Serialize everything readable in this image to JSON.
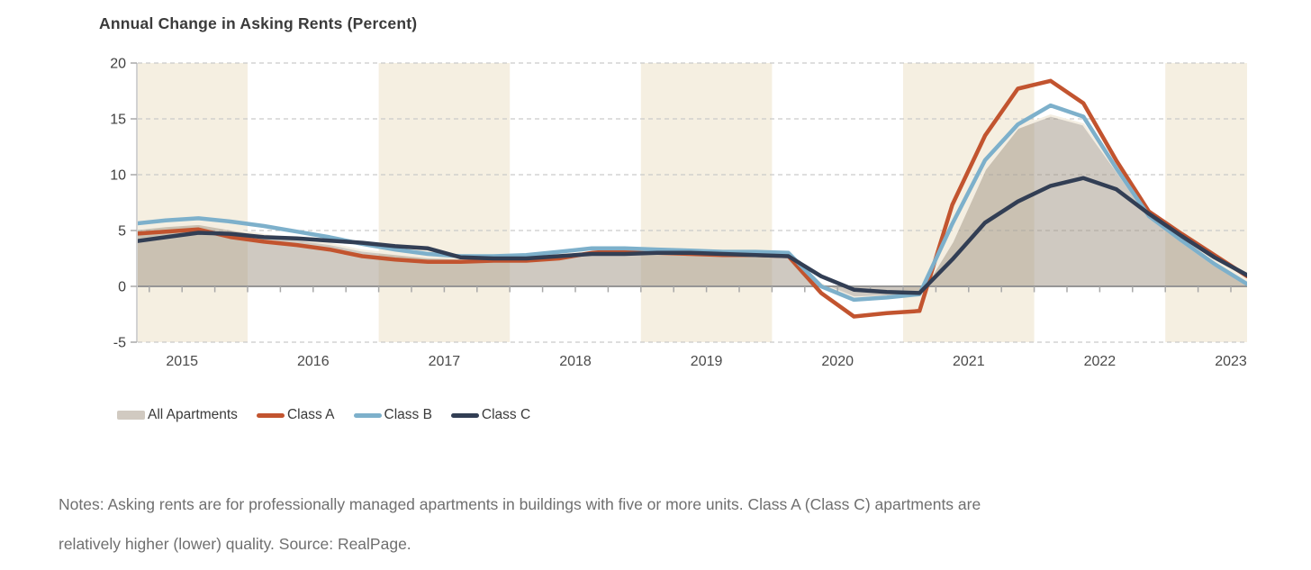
{
  "chart_data": {
    "type": "line",
    "title": "Annual Change in Asking Rents (Percent)",
    "x_quarters": [
      "2015Q1",
      "2015Q2",
      "2015Q3",
      "2015Q4",
      "2016Q1",
      "2016Q2",
      "2016Q3",
      "2016Q4",
      "2017Q1",
      "2017Q2",
      "2017Q3",
      "2017Q4",
      "2018Q1",
      "2018Q2",
      "2018Q3",
      "2018Q4",
      "2019Q1",
      "2019Q2",
      "2019Q3",
      "2019Q4",
      "2020Q1",
      "2020Q2",
      "2020Q3",
      "2020Q4",
      "2021Q1",
      "2021Q2",
      "2021Q3",
      "2021Q4",
      "2022Q1",
      "2022Q2",
      "2022Q3",
      "2022Q4",
      "2023Q1",
      "2023Q2",
      "2023Q3"
    ],
    "series": [
      {
        "name": "All Apartments",
        "style": "area",
        "color": "#d1cac1",
        "values": [
          5.1,
          5.4,
          5.6,
          5.1,
          4.6,
          4.2,
          3.8,
          3.2,
          2.9,
          2.6,
          2.5,
          2.5,
          2.6,
          2.8,
          3.1,
          3.2,
          3.1,
          3.0,
          2.9,
          2.9,
          2.8,
          0.2,
          -1.0,
          -0.9,
          -0.8,
          4.0,
          10.5,
          14.2,
          15.3,
          14.5,
          10.4,
          6.2,
          4.0,
          1.9,
          0.3
        ]
      },
      {
        "name": "Class A",
        "style": "line",
        "color": "#c2542f",
        "values": [
          4.7,
          4.9,
          5.1,
          4.4,
          4.0,
          3.7,
          3.3,
          2.7,
          2.4,
          2.2,
          2.2,
          2.3,
          2.3,
          2.5,
          3.0,
          3.2,
          3.0,
          2.9,
          2.8,
          2.8,
          2.7,
          -0.6,
          -2.7,
          -2.4,
          -2.2,
          7.3,
          13.5,
          17.7,
          18.4,
          16.4,
          11.3,
          6.7,
          4.7,
          2.8,
          0.9
        ]
      },
      {
        "name": "Class B",
        "style": "line",
        "color": "#7db0cb",
        "values": [
          5.6,
          5.9,
          6.1,
          5.8,
          5.4,
          4.9,
          4.4,
          3.8,
          3.3,
          2.9,
          2.7,
          2.7,
          2.8,
          3.1,
          3.4,
          3.4,
          3.3,
          3.2,
          3.1,
          3.1,
          3.0,
          0.0,
          -1.2,
          -1.0,
          -0.7,
          5.6,
          11.3,
          14.5,
          16.2,
          15.2,
          10.6,
          6.3,
          4.1,
          2.0,
          0.2
        ]
      },
      {
        "name": "Class C",
        "style": "line",
        "color": "#323e54",
        "values": [
          4.0,
          4.4,
          4.8,
          4.7,
          4.4,
          4.3,
          4.1,
          3.9,
          3.6,
          3.4,
          2.6,
          2.5,
          2.5,
          2.7,
          2.9,
          2.9,
          3.0,
          3.0,
          2.9,
          2.8,
          2.7,
          0.9,
          -0.3,
          -0.5,
          -0.6,
          2.4,
          5.7,
          7.6,
          9.0,
          9.7,
          8.7,
          6.5,
          4.5,
          2.6,
          1.0
        ]
      }
    ],
    "ylim": [
      -5,
      20
    ],
    "yticks": [
      20,
      15,
      10,
      5,
      0,
      -5
    ],
    "year_labels": [
      "2015",
      "2016",
      "2017",
      "2018",
      "2019",
      "2020",
      "2021",
      "2022",
      "2023"
    ],
    "banded_years": [
      2015,
      2017,
      2019,
      2021,
      2023
    ],
    "grid": "dashed-horizontal",
    "legend_position": "bottom-left",
    "colors": {
      "band": "#f5efe1",
      "gridline": "#cacaca",
      "zero_line": "#969696",
      "axis_line": "#c4c4c4",
      "tick": "#a8a8a8",
      "area_fill": "rgba(160,148,132,0.5)",
      "area_edge": "#f4eee2",
      "ytick_text": "#3f3f3f",
      "year_text": "#4a4a4a"
    }
  },
  "notes": {
    "line1": "Notes: Asking rents are for professionally managed apartments in buildings with five or more units. Class A (Class C) apartments are",
    "line2": "relatively higher (lower) quality. Source: RealPage."
  }
}
